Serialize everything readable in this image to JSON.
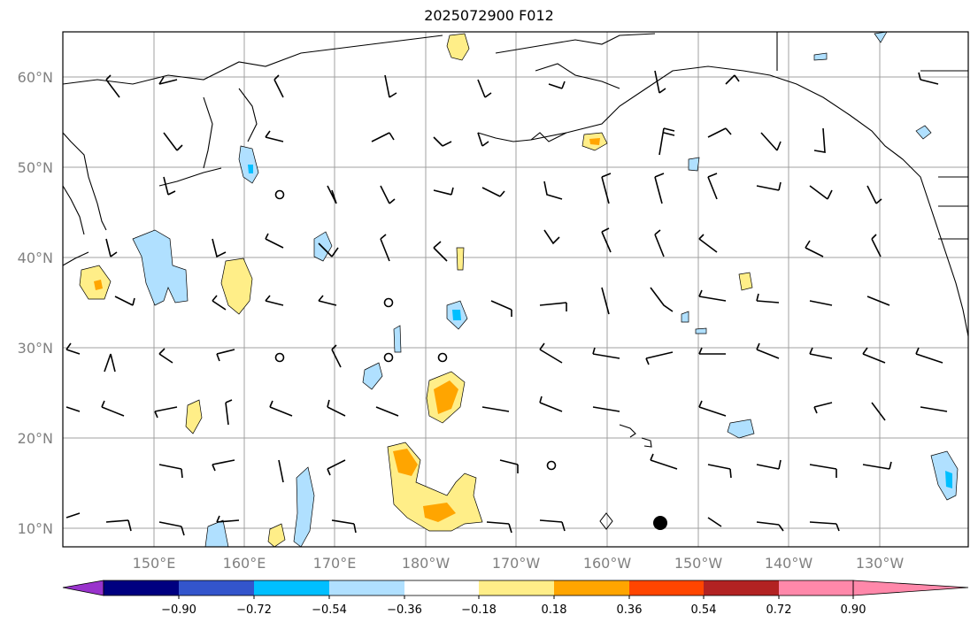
{
  "title": "2025072900 F012",
  "lat_labels": [
    "60°N",
    "50°N",
    "40°N",
    "30°N",
    "20°N",
    "10°N"
  ],
  "lon_labels": [
    "150°E",
    "160°E",
    "170°E",
    "180°W",
    "170°W",
    "160°W",
    "150°W",
    "140°W",
    "130°W"
  ],
  "colorbar": {
    "ticks": [
      "−0.90",
      "−0.72",
      "−0.54",
      "−0.36",
      "−0.18",
      "0.18",
      "0.36",
      "0.54",
      "0.72",
      "0.90"
    ],
    "colors": [
      "#9933cc",
      "#000080",
      "#3355cc",
      "#00bfff",
      "#b0e0ff",
      "#ffffff",
      "#ffee88",
      "#ffa500",
      "#ff4500",
      "#b22222",
      "#ff88aa"
    ]
  },
  "colors": {
    "land_outline": "#000000",
    "grid": "#a0a0a0",
    "positive_low": "#ffee88",
    "positive_mid": "#ffa500",
    "negative_low": "#b0e0ff",
    "negative_mid": "#00bfff"
  }
}
